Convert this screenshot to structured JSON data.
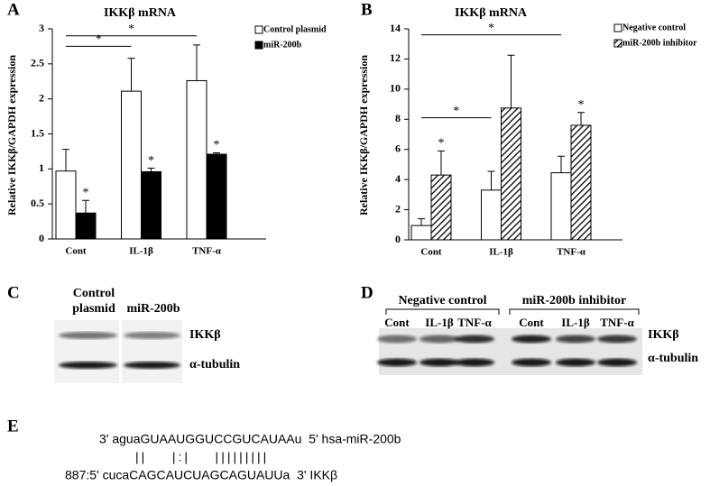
{
  "chart_data": [
    {
      "type": "bar",
      "label": "A",
      "title": "IKKβ mRNA",
      "y_label": "Relative IKKβ/GAPDH expression",
      "categories": [
        "Cont",
        "IL-1β",
        "TNF-α"
      ],
      "series": [
        {
          "name": "Control plasmid",
          "color": "#ffffff",
          "values": [
            0.97,
            2.11,
            2.26
          ],
          "errors": [
            0.31,
            0.47,
            0.51
          ]
        },
        {
          "name": "miR-200b",
          "color": "#000000",
          "values": [
            0.37,
            0.96,
            1.21
          ],
          "errors": [
            0.18,
            0.05,
            0.02
          ]
        }
      ],
      "ylim": [
        0,
        3
      ],
      "yticks": [
        0,
        0.5,
        1,
        1.5,
        2,
        2.5,
        3
      ],
      "annotations": [
        {
          "text": "*",
          "series": 1,
          "category": 0
        },
        {
          "text": "*",
          "series": 1,
          "category": 1
        },
        {
          "text": "*",
          "series": 1,
          "category": 2
        }
      ],
      "brackets": [
        {
          "text": "*",
          "from": 0,
          "to": 1,
          "y": 2.75
        },
        {
          "text": "*",
          "from": 0,
          "to": 2,
          "y": 2.9
        }
      ],
      "legend": "upper right"
    },
    {
      "type": "bar",
      "label": "B",
      "title": "IKKβ mRNA",
      "y_label": "Relative IKKβ/GAPDH expression",
      "categories": [
        "Cont",
        "IL-1β",
        "TNF-α"
      ],
      "series": [
        {
          "name": "Negative control",
          "color": "#ffffff",
          "values": [
            0.95,
            3.3,
            4.45
          ],
          "errors": [
            0.45,
            1.25,
            1.1
          ]
        },
        {
          "name": "miR-200b inhibitor",
          "color": "#000000",
          "hatch": true,
          "values": [
            4.3,
            8.75,
            7.6
          ],
          "errors": [
            1.6,
            3.5,
            0.85
          ]
        }
      ],
      "ylim": [
        0,
        14
      ],
      "yticks": [
        0,
        2,
        4,
        6,
        8,
        10,
        12,
        14
      ],
      "annotations": [
        {
          "text": "*",
          "series": 1,
          "category": 0
        },
        {
          "text": "*",
          "series": 1,
          "category": 2
        }
      ],
      "brackets": [
        {
          "text": "*",
          "from": 0,
          "to": 1,
          "y": 8.1
        },
        {
          "text": "*",
          "from": 0,
          "to": 2,
          "y": 13.6
        }
      ],
      "legend": "upper right"
    }
  ],
  "blot_c": {
    "label": "C",
    "column_lines": [
      [
        "Control",
        "plasmid"
      ],
      [
        "miR-200b"
      ]
    ],
    "rows": [
      "IKKβ",
      "α-tubulin"
    ]
  },
  "blot_d": {
    "label": "D",
    "groups": [
      "Negative control",
      "miR-200b inhibitor"
    ],
    "lanes": [
      "Cont",
      "IL-1β",
      "TNF-α",
      "Cont",
      "IL-1β",
      "TNF-α"
    ],
    "rows": [
      "IKKβ",
      "α-tubulin"
    ]
  },
  "alignment": {
    "label": "E",
    "mirna": "3' aguaGUAAUGGUCCGUCAUAAu  5' hsa-miR-200b",
    "pairing": "||    |:|    |||||||||",
    "target": "887:5' cucaCAGCAUCUAGCAGUAUUa  3' IKKβ"
  }
}
